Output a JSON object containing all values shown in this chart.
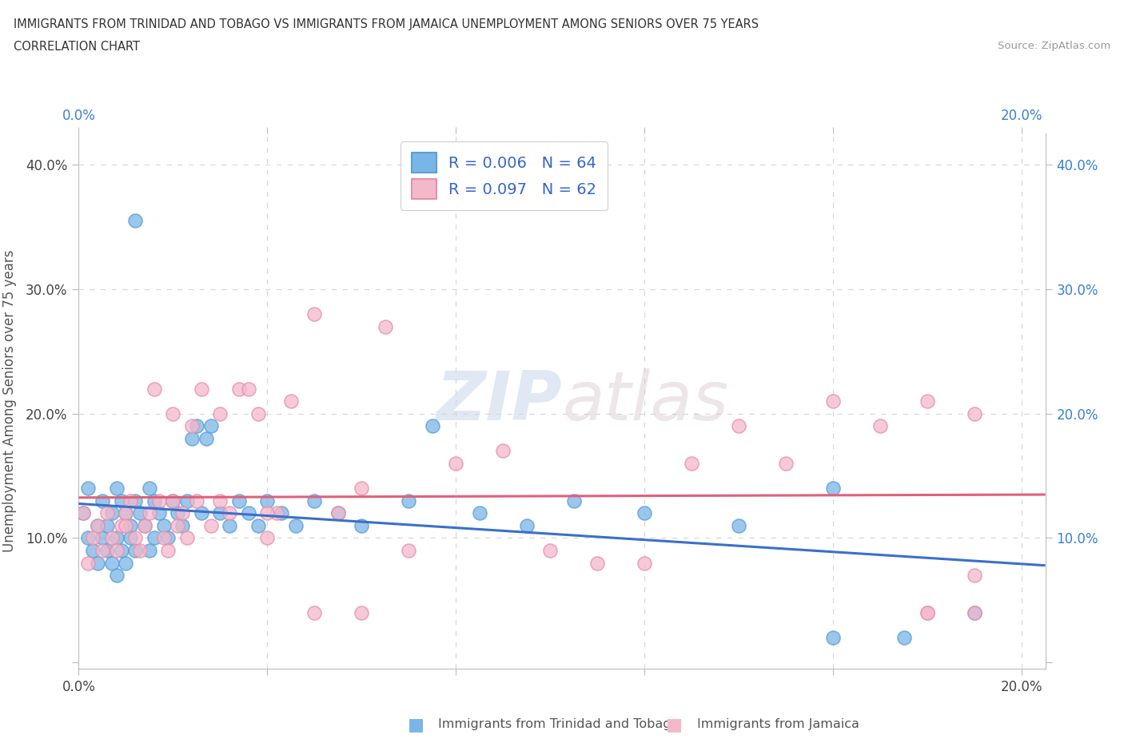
{
  "title_line1": "IMMIGRANTS FROM TRINIDAD AND TOBAGO VS IMMIGRANTS FROM JAMAICA UNEMPLOYMENT AMONG SENIORS OVER 75 YEARS",
  "title_line2": "CORRELATION CHART",
  "source": "Source: ZipAtlas.com",
  "ylabel": "Unemployment Among Seniors over 75 years",
  "xlim": [
    0.0,
    0.205
  ],
  "ylim": [
    -0.005,
    0.425
  ],
  "series1_color": "#7ab5e8",
  "series1_edge": "#5a9fd4",
  "series2_color": "#f4b8cb",
  "series2_edge": "#e890aa",
  "trend1_color": "#3a6fcc",
  "trend2_color": "#e0607a",
  "series1_label": "Immigrants from Trinidad and Tobago",
  "series2_label": "Immigrants from Jamaica",
  "R1": 0.006,
  "N1": 64,
  "R2": 0.097,
  "N2": 62,
  "legend_R_color": "#3366cc",
  "watermark_zip": "ZIP",
  "watermark_atlas": "atlas",
  "grid_color": "#d8d8d8",
  "background_color": "#ffffff",
  "s1_x": [
    0.001,
    0.002,
    0.002,
    0.003,
    0.004,
    0.004,
    0.005,
    0.005,
    0.006,
    0.006,
    0.007,
    0.007,
    0.008,
    0.008,
    0.008,
    0.009,
    0.009,
    0.01,
    0.01,
    0.011,
    0.011,
    0.012,
    0.012,
    0.013,
    0.014,
    0.015,
    0.015,
    0.016,
    0.016,
    0.017,
    0.018,
    0.019,
    0.02,
    0.021,
    0.022,
    0.023,
    0.024,
    0.025,
    0.026,
    0.027,
    0.028,
    0.03,
    0.032,
    0.034,
    0.036,
    0.038,
    0.04,
    0.043,
    0.046,
    0.05,
    0.055,
    0.06,
    0.07,
    0.075,
    0.085,
    0.095,
    0.105,
    0.12,
    0.14,
    0.16,
    0.175,
    0.19,
    0.012,
    0.16
  ],
  "s1_y": [
    0.12,
    0.14,
    0.1,
    0.09,
    0.11,
    0.08,
    0.13,
    0.1,
    0.11,
    0.09,
    0.12,
    0.08,
    0.14,
    0.1,
    0.07,
    0.13,
    0.09,
    0.12,
    0.08,
    0.11,
    0.1,
    0.13,
    0.09,
    0.12,
    0.11,
    0.14,
    0.09,
    0.13,
    0.1,
    0.12,
    0.11,
    0.1,
    0.13,
    0.12,
    0.11,
    0.13,
    0.18,
    0.19,
    0.12,
    0.18,
    0.19,
    0.12,
    0.11,
    0.13,
    0.12,
    0.11,
    0.13,
    0.12,
    0.11,
    0.13,
    0.12,
    0.11,
    0.13,
    0.19,
    0.12,
    0.11,
    0.13,
    0.12,
    0.11,
    0.14,
    0.02,
    0.04,
    0.355,
    0.02
  ],
  "s2_x": [
    0.001,
    0.002,
    0.003,
    0.004,
    0.005,
    0.006,
    0.007,
    0.008,
    0.009,
    0.01,
    0.011,
    0.012,
    0.013,
    0.014,
    0.015,
    0.016,
    0.017,
    0.018,
    0.019,
    0.02,
    0.021,
    0.022,
    0.023,
    0.024,
    0.025,
    0.026,
    0.028,
    0.03,
    0.032,
    0.034,
    0.036,
    0.038,
    0.04,
    0.042,
    0.045,
    0.05,
    0.055,
    0.06,
    0.065,
    0.07,
    0.08,
    0.09,
    0.1,
    0.11,
    0.12,
    0.13,
    0.14,
    0.15,
    0.16,
    0.17,
    0.18,
    0.19,
    0.01,
    0.02,
    0.03,
    0.04,
    0.05,
    0.06,
    0.18,
    0.19,
    0.18,
    0.19
  ],
  "s2_y": [
    0.12,
    0.08,
    0.1,
    0.11,
    0.09,
    0.12,
    0.1,
    0.09,
    0.11,
    0.12,
    0.13,
    0.1,
    0.09,
    0.11,
    0.12,
    0.22,
    0.13,
    0.1,
    0.09,
    0.2,
    0.11,
    0.12,
    0.1,
    0.19,
    0.13,
    0.22,
    0.11,
    0.2,
    0.12,
    0.22,
    0.22,
    0.2,
    0.1,
    0.12,
    0.21,
    0.28,
    0.12,
    0.14,
    0.27,
    0.09,
    0.16,
    0.17,
    0.09,
    0.08,
    0.08,
    0.16,
    0.19,
    0.16,
    0.21,
    0.19,
    0.04,
    0.07,
    0.11,
    0.13,
    0.13,
    0.12,
    0.04,
    0.04,
    0.21,
    0.2,
    0.04,
    0.04
  ]
}
